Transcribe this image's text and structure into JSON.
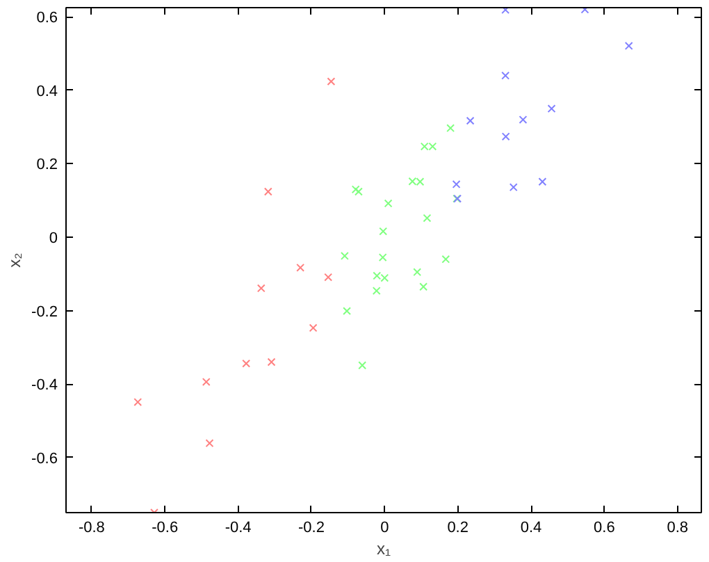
{
  "chart_data": {
    "type": "scatter",
    "xlabel": "x₁",
    "ylabel": "x₂",
    "xlim": [
      -0.87,
      0.865
    ],
    "ylim": [
      -0.75,
      0.625
    ],
    "xticks": [
      -0.8,
      -0.6,
      -0.4,
      -0.2,
      0,
      0.2,
      0.4,
      0.6,
      0.8
    ],
    "yticks": [
      -0.6,
      -0.4,
      -0.2,
      0,
      0.2,
      0.4,
      0.6
    ],
    "grid": false,
    "marker": "cross",
    "series": [
      {
        "color": "#ff8080",
        "x": [
          -0.146,
          -0.318,
          -0.23,
          -0.154,
          -0.337,
          -0.195,
          -0.378,
          -0.309,
          -0.487,
          -0.674,
          -0.478,
          -0.629
        ],
        "values": [
          0.424,
          0.124,
          -0.083,
          -0.109,
          -0.139,
          -0.247,
          -0.344,
          -0.34,
          -0.394,
          -0.449,
          -0.561,
          -0.75
        ]
      },
      {
        "color": "#80ff80",
        "x": [
          -0.109,
          -0.079,
          -0.071,
          0.01,
          -0.004,
          -0.005,
          -0.021,
          0.0,
          -0.022,
          -0.103,
          -0.061,
          0.106,
          0.089,
          0.167,
          0.116,
          0.076,
          0.097,
          0.109,
          0.131,
          0.18,
          0.197
        ],
        "values": [
          -0.051,
          0.13,
          0.124,
          0.092,
          0.016,
          -0.055,
          -0.105,
          -0.111,
          -0.146,
          -0.201,
          -0.349,
          -0.135,
          -0.095,
          -0.06,
          0.052,
          0.152,
          0.151,
          0.247,
          0.247,
          0.297,
          0.105
        ]
      },
      {
        "color": "#8080ff",
        "x": [
          0.33,
          0.547,
          0.667,
          0.33,
          0.456,
          0.234,
          0.378,
          0.331,
          0.196,
          0.352,
          0.431,
          0.199
        ],
        "values": [
          0.619,
          0.62,
          0.521,
          0.44,
          0.35,
          0.317,
          0.32,
          0.274,
          0.144,
          0.136,
          0.151,
          0.105
        ]
      }
    ]
  }
}
